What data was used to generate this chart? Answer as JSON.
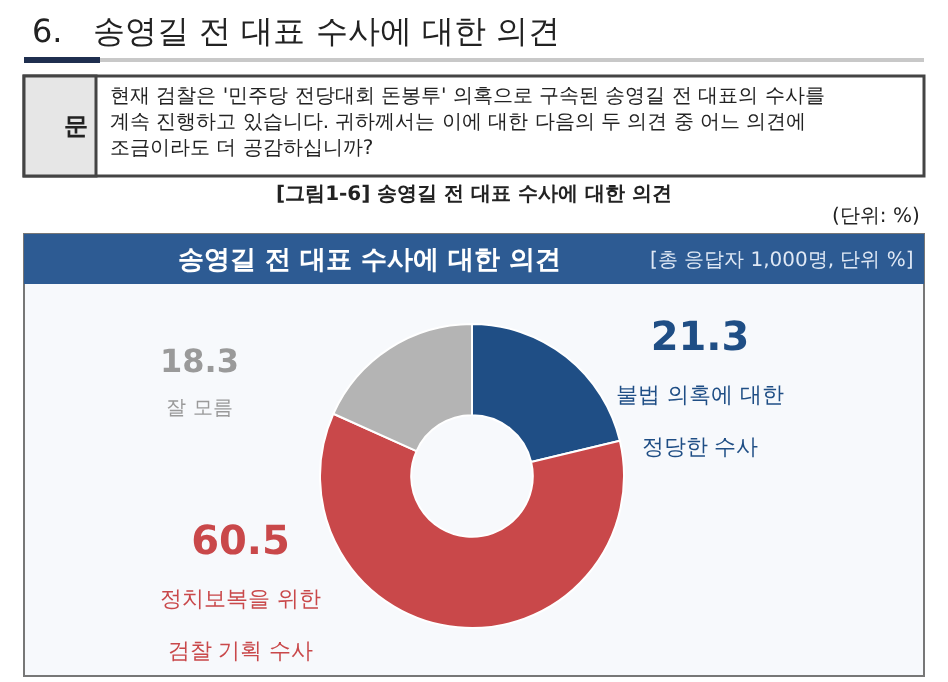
{
  "chart_data": {
    "type": "donut",
    "title": "송영길 전 대표 수사에 대한 의견",
    "subtitle": "[총 응답자 1,000명, 단위 %]",
    "categories": [
      "불법 의혹에 대한\n정당한 수사",
      "정치보복을 위한\n검찰 기획 수사",
      "잘 모름"
    ],
    "values": [
      21.3,
      60.5,
      18.3
    ],
    "colors": [
      "#1f4e85",
      "#c9484a",
      "#b4b4b4"
    ],
    "data_labels": true,
    "legend": false,
    "annotations": [
      "6.   송영길 전 대표 수사에 대한 의견",
      "문",
      "현재 검찰은 '민주당 전당대회 돈봉투' 의혹으로 구속된 송영길 전 대표의 수사를 계속 진행하고 있습니다. 귀하께서는 이에 대한 다음의 두 의견 중 어느 의견에 조금이라도 더 공감하십니까?",
      "[그림1-6] 송영길 전 대표 수사에 대한 의견",
      "(단위: %)"
    ]
  }
}
